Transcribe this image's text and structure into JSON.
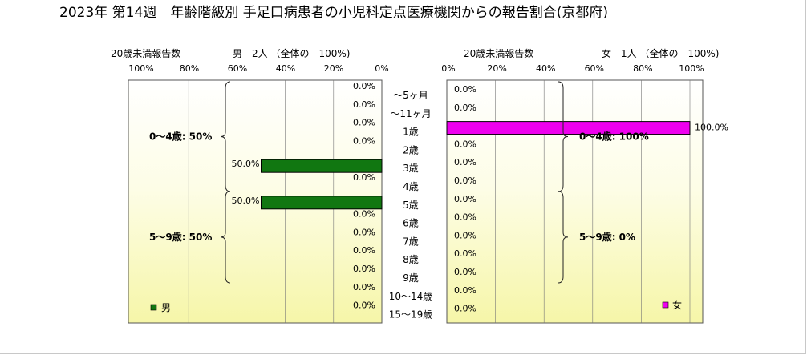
{
  "chart_data": {
    "type": "bar",
    "title": "2023年 第14週　年齢階級別 手足口病患者の小児科定点医療機関からの報告割合(京都府)",
    "categories": [
      "～5ヶ月",
      "～11ヶ月",
      "1歳",
      "2歳",
      "3歳",
      "4歳",
      "5歳",
      "6歳",
      "7歳",
      "8歳",
      "9歳",
      "10～14歳",
      "15～19歳"
    ],
    "xlim": [
      0,
      100
    ],
    "ticks": [
      "100%",
      "80%",
      "60%",
      "40%",
      "20%",
      "0%"
    ],
    "ticks_right": [
      "0%",
      "20%",
      "40%",
      "60%",
      "80%",
      "100%"
    ],
    "left_panel": {
      "caption": "20歳未満報告数",
      "heading": "男　2人 （全体の　100%)",
      "legend": "男",
      "color": "#117711",
      "values": [
        0,
        0,
        0,
        0,
        50,
        0,
        50,
        0,
        0,
        0,
        0,
        0,
        0
      ],
      "labels": [
        "0.0%",
        "0.0%",
        "0.0%",
        "0.0%",
        "50.0%",
        "0.0%",
        "50.0%",
        "0.0%",
        "0.0%",
        "0.0%",
        "0.0%",
        "0.0%",
        "0.0%"
      ],
      "groups": [
        {
          "label": "0～4歳: 50%",
          "from": 0,
          "to": 5
        },
        {
          "label": "5～9歳: 50%",
          "from": 6,
          "to": 10
        }
      ]
    },
    "right_panel": {
      "caption": "20歳未満報告数",
      "heading": "女　1人 （全体の　100%)",
      "legend": "女",
      "color": "#ee00ee",
      "values": [
        0,
        0,
        100,
        0,
        0,
        0,
        0,
        0,
        0,
        0,
        0,
        0,
        0
      ],
      "labels": [
        "0.0%",
        "0.0%",
        "100.0%",
        "0.0%",
        "0.0%",
        "0.0%",
        "0.0%",
        "0.0%",
        "0.0%",
        "0.0%",
        "0.0%",
        "0.0%",
        "0.0%"
      ],
      "groups": [
        {
          "label": "0～4歳: 100%",
          "from": 0,
          "to": 5
        },
        {
          "label": "5～9歳: 0%",
          "from": 6,
          "to": 10
        }
      ]
    }
  }
}
